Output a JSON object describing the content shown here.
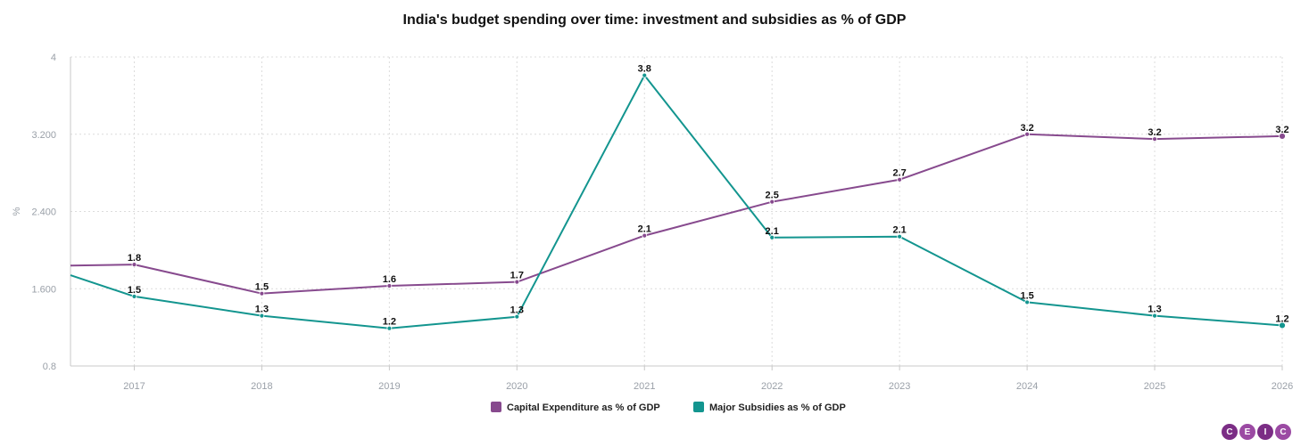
{
  "chart_data": {
    "type": "line",
    "title": "India's budget spending over time: investment and subsidies as % of GDP",
    "ylabel": "%",
    "xlabel": "",
    "ylim": [
      0.8,
      4
    ],
    "yticks": [
      "0.8",
      "1.600",
      "2.400",
      "3.200",
      "4"
    ],
    "ytick_values": [
      0.8,
      1.6,
      2.4,
      3.2,
      4.0
    ],
    "categories": [
      "2017",
      "2018",
      "2019",
      "2020",
      "2021",
      "2022",
      "2023",
      "2024",
      "2025",
      "2026"
    ],
    "x_start": 2016.5,
    "series": [
      {
        "name": "Capital Expenditure as % of GDP",
        "color": "#874a8e",
        "start_value": 1.84,
        "values": [
          1.85,
          1.55,
          1.63,
          1.67,
          2.15,
          2.5,
          2.73,
          3.2,
          3.15,
          3.18
        ],
        "labels": [
          "1.8",
          "1.5",
          "1.6",
          "1.7",
          "2.1",
          "2.5",
          "2.7",
          "3.2",
          "3.2",
          "3.2"
        ]
      },
      {
        "name": "Major Subsidies as % of GDP",
        "color": "#13958f",
        "start_value": 1.74,
        "values": [
          1.52,
          1.32,
          1.19,
          1.31,
          3.81,
          2.13,
          2.14,
          1.46,
          1.32,
          1.22
        ],
        "labels": [
          "1.5",
          "1.3",
          "1.2",
          "1.3",
          "3.8",
          "2.1",
          "2.1",
          "1.5",
          "1.3",
          "1.2"
        ]
      }
    ],
    "grid": true,
    "legend_position": "bottom-center"
  },
  "branding": {
    "letters": [
      "C",
      "E",
      "I",
      "C"
    ],
    "colors": [
      "#7b2d85",
      "#9b4aa3",
      "#7b2d85",
      "#9b4aa3"
    ]
  }
}
